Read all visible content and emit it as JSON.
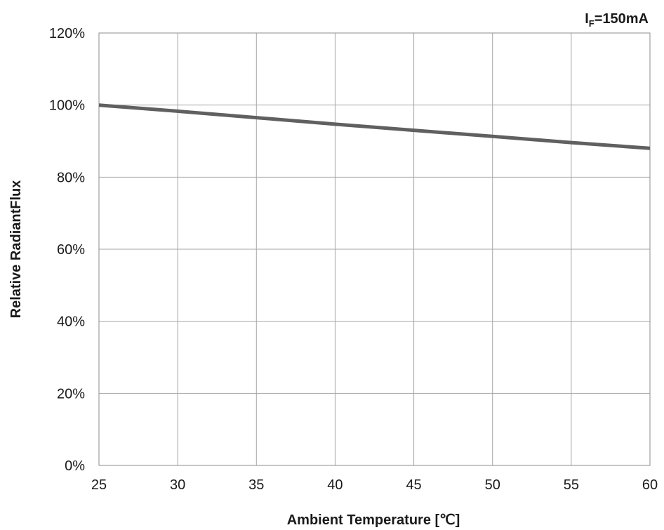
{
  "chart_data": {
    "type": "line",
    "annotation": {
      "main": "I",
      "sub": "F",
      "rest": "=150mA"
    },
    "xlabel": "Ambient Temperature [℃]",
    "ylabel": "Relative RadiantFlux",
    "xlim": [
      25,
      60
    ],
    "ylim": [
      0,
      120
    ],
    "x_ticks": [
      "25",
      "30",
      "35",
      "40",
      "45",
      "50",
      "55",
      "60"
    ],
    "y_ticks": [
      "0%",
      "20%",
      "40%",
      "60%",
      "80%",
      "100%",
      "120%"
    ],
    "grid": true,
    "line_color": "#606060",
    "series": [
      {
        "x": [
          25,
          30,
          35,
          40,
          45,
          50,
          55,
          60
        ],
        "y": [
          100,
          98.3,
          96.5,
          94.7,
          93.0,
          91.3,
          89.6,
          88.0
        ]
      }
    ]
  }
}
